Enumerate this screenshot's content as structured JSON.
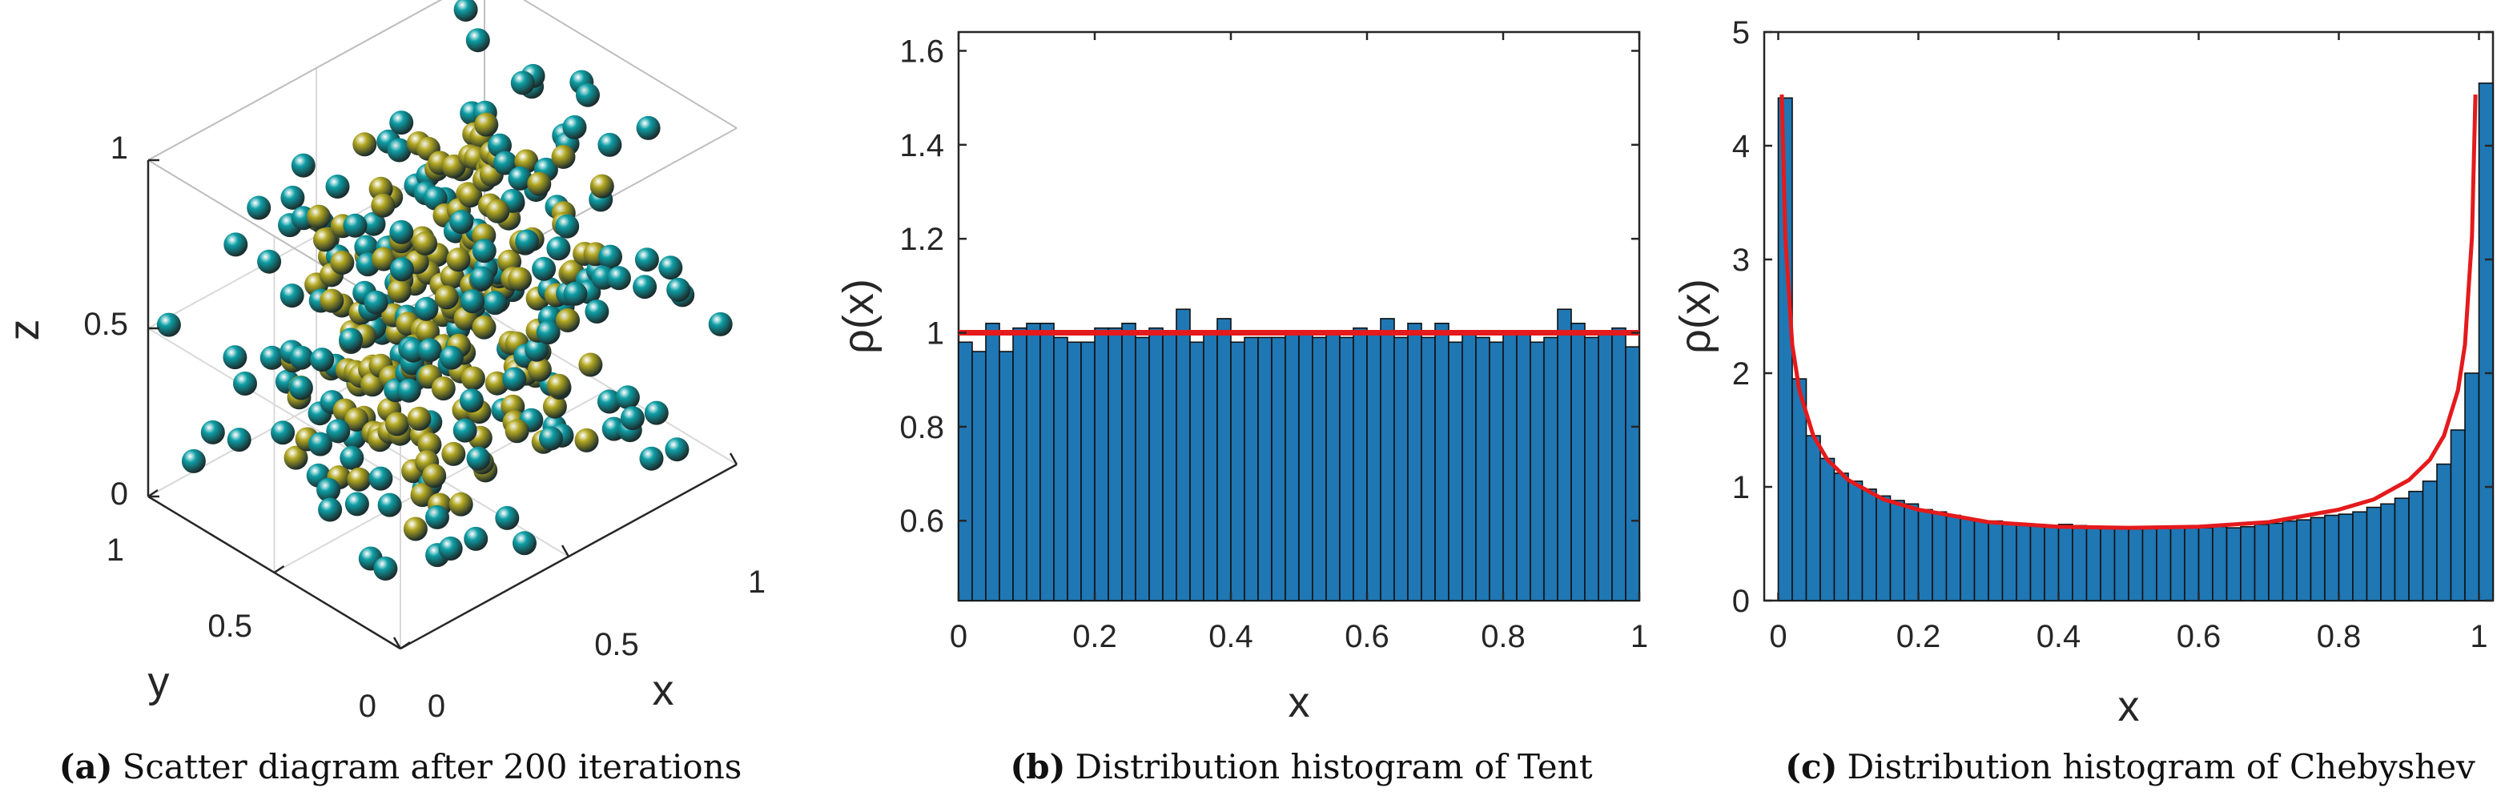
{
  "colors": {
    "bar": "#1f77b4",
    "bar_edge": "#111111",
    "curve": "#e41a1c",
    "sphere_teal": "#0e9fa6",
    "sphere_olive": "#b3a822",
    "axis": "#262626"
  },
  "chart_data": [
    {
      "type": "scatter",
      "caption_label": "(a)",
      "caption_text": "Scatter diagram after 200 iterations",
      "xlabel": "x",
      "ylabel": "y",
      "zlabel": "z",
      "xlim": [
        0,
        1
      ],
      "ylim": [
        0,
        1
      ],
      "zlim": [
        0,
        1
      ],
      "x_ticks": [
        "0",
        "0.5",
        "1"
      ],
      "y_ticks": [
        "0",
        "0.5",
        "1"
      ],
      "z_ticks": [
        "0",
        "0.5",
        "1"
      ],
      "series": [
        {
          "name": "teal",
          "color": "#0e9fa6",
          "count": 200
        },
        {
          "name": "olive",
          "color": "#b3a822",
          "count": 200
        }
      ]
    },
    {
      "type": "bar",
      "caption_label": "(b)",
      "caption_text": "Distribution histogram of Tent",
      "xlabel": "x",
      "ylabel": "ρ(x)",
      "xlim": [
        0,
        1
      ],
      "ylim": [
        0.43,
        1.64
      ],
      "x_ticks": [
        0,
        0.2,
        0.4,
        0.6,
        0.8,
        1
      ],
      "x_tick_labels": [
        "0",
        "0.2",
        "0.4",
        "0.6",
        "0.8",
        "1"
      ],
      "y_ticks": [
        0.6,
        0.8,
        1,
        1.2,
        1.4,
        1.6
      ],
      "y_tick_labels": [
        "0.6",
        "0.8",
        "1",
        "1.2",
        "1.4",
        "1.6"
      ],
      "bin_width": 0.02,
      "values": [
        0.98,
        0.96,
        1.02,
        0.96,
        1.01,
        1.02,
        1.02,
        0.99,
        0.98,
        0.98,
        1.01,
        1.01,
        1.02,
        0.99,
        1.01,
        1.0,
        1.05,
        0.98,
        1.0,
        1.03,
        0.98,
        0.99,
        0.99,
        0.99,
        1.0,
        1.0,
        0.99,
        1.0,
        0.99,
        1.01,
        1.0,
        1.03,
        0.99,
        1.02,
        0.99,
        1.02,
        0.98,
        1.0,
        0.99,
        0.98,
        1.0,
        1.0,
        0.98,
        0.99,
        1.05,
        1.02,
        0.99,
        1.0,
        1.01,
        0.97
      ],
      "curve": {
        "name": "theoretical density",
        "x": [
          0,
          1
        ],
        "y": [
          1,
          1
        ]
      }
    },
    {
      "type": "bar",
      "caption_label": "(c)",
      "caption_text": "Distribution histogram of Chebyshev",
      "xlabel": "x",
      "ylabel": "ρ(x)",
      "xlim": [
        -0.02,
        1.02
      ],
      "ylim": [
        0,
        5
      ],
      "x_ticks": [
        0,
        0.2,
        0.4,
        0.6,
        0.8,
        1
      ],
      "x_tick_labels": [
        "0",
        "0.2",
        "0.4",
        "0.6",
        "0.8",
        "1"
      ],
      "y_ticks": [
        0,
        1,
        2,
        3,
        4,
        5
      ],
      "y_tick_labels": [
        "0",
        "1",
        "2",
        "3",
        "4",
        "5"
      ],
      "bin_width": 0.02,
      "values": [
        4.42,
        1.95,
        1.45,
        1.25,
        1.12,
        1.05,
        0.98,
        0.92,
        0.88,
        0.85,
        0.8,
        0.78,
        0.75,
        0.72,
        0.7,
        0.7,
        0.68,
        0.67,
        0.67,
        0.66,
        0.67,
        0.66,
        0.65,
        0.65,
        0.64,
        0.63,
        0.64,
        0.64,
        0.65,
        0.64,
        0.64,
        0.65,
        0.64,
        0.65,
        0.67,
        0.68,
        0.7,
        0.71,
        0.73,
        0.75,
        0.76,
        0.78,
        0.82,
        0.85,
        0.9,
        0.96,
        1.05,
        1.2,
        1.5,
        2.0,
        4.55
      ],
      "curve": {
        "name": "theoretical density",
        "x": [
          0.005,
          0.01,
          0.02,
          0.03,
          0.05,
          0.07,
          0.1,
          0.15,
          0.2,
          0.3,
          0.4,
          0.5,
          0.6,
          0.7,
          0.8,
          0.85,
          0.9,
          0.93,
          0.95,
          0.97,
          0.98,
          0.99,
          0.995
        ],
        "y": [
          4.45,
          3.2,
          2.25,
          1.85,
          1.45,
          1.24,
          1.06,
          0.89,
          0.8,
          0.69,
          0.65,
          0.64,
          0.65,
          0.69,
          0.8,
          0.89,
          1.06,
          1.24,
          1.45,
          1.85,
          2.25,
          3.2,
          4.45
        ]
      }
    }
  ]
}
